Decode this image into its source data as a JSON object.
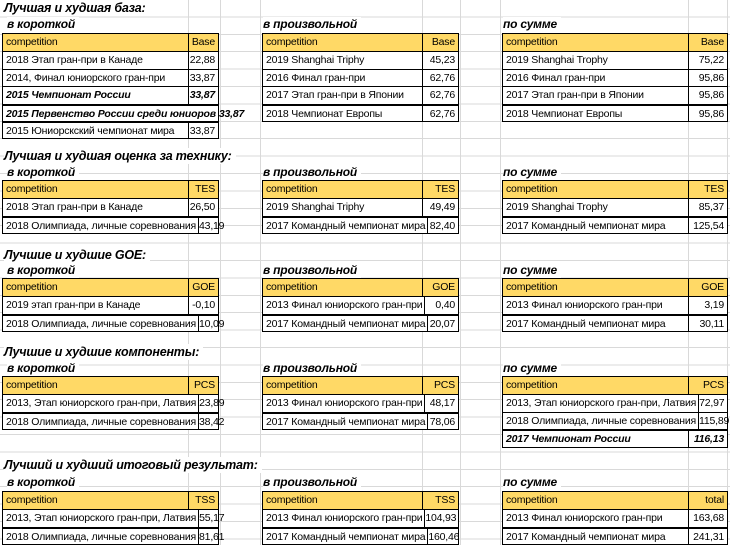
{
  "sheet": {
    "type": "spreadsheet-statistics",
    "header_label": "competition",
    "colors": {
      "header_fill": "#FFD966",
      "gridline": "#d9d9d9",
      "table_border": "#000000",
      "text": "#000000"
    }
  },
  "sections": [
    {
      "title": "Лучшая и худшая база:",
      "tables": [
        {
          "subtitle": "в короткой",
          "value_header": "Base",
          "rows": [
            {
              "competition": "2018 Этап гран-при в Канаде",
              "value": "22,88",
              "em": false,
              "thick": false
            },
            {
              "competition": "2014, Финал юниорского гран-при",
              "value": "33,87",
              "em": false,
              "thick": false
            },
            {
              "competition": "2015 Чемпионат России",
              "value": "33,87",
              "em": true,
              "thick": false
            },
            {
              "competition": "2015 Первенство России среди юниоров",
              "value": "33,87",
              "em": true,
              "thick": true
            },
            {
              "competition": "2015 Юниорскский чемпионат мира",
              "value": "33,87",
              "em": false,
              "thick": true
            }
          ]
        },
        {
          "subtitle": "в произвольной",
          "value_header": "Base",
          "rows": [
            {
              "competition": "2019 Shanghai Triphy",
              "value": "45,23",
              "em": false,
              "thick": false
            },
            {
              "competition": "2016 Финал гран-при",
              "value": "62,76",
              "em": false,
              "thick": false
            },
            {
              "competition": "2017 Этап гран-при в Японии",
              "value": "62,76",
              "em": false,
              "thick": false
            },
            {
              "competition": "2018 Чемпионат Европы",
              "value": "62,76",
              "em": false,
              "thick": true
            }
          ]
        },
        {
          "subtitle": "по сумме",
          "value_header": "Base",
          "rows": [
            {
              "competition": "2019 Shanghai Trophy",
              "value": "75,22",
              "em": false,
              "thick": false
            },
            {
              "competition": "2016 Финал гран-при",
              "value": "95,86",
              "em": false,
              "thick": false
            },
            {
              "competition": "2017 Этап гран-при в Японии",
              "value": "95,86",
              "em": false,
              "thick": false
            },
            {
              "competition": "2018 Чемпионат Европы",
              "value": "95,86",
              "em": false,
              "thick": true
            }
          ]
        }
      ]
    },
    {
      "title": "Лучшая и худшая оценка за технику:",
      "tables": [
        {
          "subtitle": "в короткой",
          "value_header": "TES",
          "rows": [
            {
              "competition": "2018 Этап гран-при в Канаде",
              "value": "26,50",
              "em": false,
              "thick": false
            },
            {
              "competition": "2018 Олимпиада, личные соревнования",
              "value": "43,19",
              "em": false,
              "thick": true
            }
          ]
        },
        {
          "subtitle": "в произвольной",
          "value_header": "TES",
          "rows": [
            {
              "competition": "2019 Shanghai Triphy",
              "value": "49,49",
              "em": false,
              "thick": false
            },
            {
              "competition": "2017 Командный чемпионат мира",
              "value": "82,40",
              "em": false,
              "thick": true
            }
          ]
        },
        {
          "subtitle": "по сумме",
          "value_header": "TES",
          "rows": [
            {
              "competition": "2019 Shanghai Trophy",
              "value": "85,37",
              "em": false,
              "thick": false
            },
            {
              "competition": "2017 Командный чемпионат мира",
              "value": "125,54",
              "em": false,
              "thick": true
            }
          ]
        }
      ]
    },
    {
      "title": "Лучшие и худшие GOE:",
      "tables": [
        {
          "subtitle": "в короткой",
          "value_header": "GOE",
          "rows": [
            {
              "competition": "2019 этап гран-при в Канаде",
              "value": "-0,10",
              "em": false,
              "thick": false
            },
            {
              "competition": "2018 Олимпиада, личные соревнования",
              "value": "10,09",
              "em": false,
              "thick": true
            }
          ]
        },
        {
          "subtitle": "в произвольной",
          "value_header": "GOE",
          "rows": [
            {
              "competition": "2013 Финал юниорского гран-при",
              "value": "0,40",
              "em": false,
              "thick": false
            },
            {
              "competition": "2017 Командный чемпионат мира",
              "value": "20,07",
              "em": false,
              "thick": true
            }
          ]
        },
        {
          "subtitle": "по сумме",
          "value_header": "GOE",
          "rows": [
            {
              "competition": "2013 Финал юниорского гран-при",
              "value": "3,19",
              "em": false,
              "thick": false
            },
            {
              "competition": "2017 Командный чемпионат мира",
              "value": "30,11",
              "em": false,
              "thick": true
            }
          ]
        }
      ]
    },
    {
      "title": "Лучшие и худшие компоненты:",
      "tables": [
        {
          "subtitle": "в короткой",
          "value_header": "PCS",
          "rows": [
            {
              "competition": "2013, Этап юниорского гран-при, Латвия",
              "value": "23,89",
              "em": false,
              "thick": false
            },
            {
              "competition": "2018 Олимпиада, личные соревнования",
              "value": "38,42",
              "em": false,
              "thick": true
            }
          ]
        },
        {
          "subtitle": "в произвольной",
          "value_header": "PCS",
          "rows": [
            {
              "competition": "2013 Финал юниорского гран-при",
              "value": "48,17",
              "em": false,
              "thick": false
            },
            {
              "competition": "2017 Командный чемпионат мира",
              "value": "78,06",
              "em": false,
              "thick": true
            }
          ]
        },
        {
          "subtitle": "по сумме",
          "value_header": "PCS",
          "rows": [
            {
              "competition": "2013, Этап юниорского гран-при, Латвия",
              "value": "72,97",
              "em": false,
              "thick": false
            },
            {
              "competition": "2018 Олимпиада, личные соревнования",
              "value": "115,89",
              "em": false,
              "thick": false
            },
            {
              "competition": "2017 Чемпионат России",
              "value": "116,13",
              "em": true,
              "thick": true
            }
          ]
        }
      ]
    },
    {
      "title": "Лучший и худший итоговый результат:",
      "tables": [
        {
          "subtitle": "в короткой",
          "value_header": "TSS",
          "rows": [
            {
              "competition": "2013, Этап юниорского гран-при, Латвия",
              "value": "55,17",
              "em": false,
              "thick": false
            },
            {
              "competition": "2018 Олимпиада, личные соревнования",
              "value": "81,61",
              "em": false,
              "thick": true
            }
          ]
        },
        {
          "subtitle": "в произвольной",
          "value_header": "TSS",
          "rows": [
            {
              "competition": "2013 Финал юниорского гран-при",
              "value": "104,93",
              "em": false,
              "thick": false
            },
            {
              "competition": "2017 Командный чемпионат мира",
              "value": "160,46",
              "em": false,
              "thick": true
            }
          ]
        },
        {
          "subtitle": "по сумме",
          "value_header": "total",
          "rows": [
            {
              "competition": "2013 Финал юниорского гран-при",
              "value": "163,68",
              "em": false,
              "thick": false
            },
            {
              "competition": "2017 Командный чемпионат мира",
              "value": "241,31",
              "em": false,
              "thick": true
            }
          ]
        }
      ]
    }
  ]
}
